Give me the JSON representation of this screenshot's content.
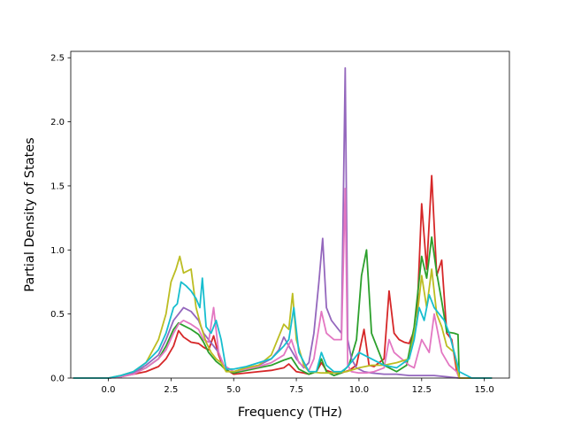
{
  "chart_data": {
    "type": "line",
    "title": "",
    "xlabel": "Frequency (THz)",
    "ylabel": "Partial Density of States",
    "xlim": [
      -1.5,
      16.0
    ],
    "ylim": [
      0.0,
      2.55
    ],
    "xticks": [
      0.0,
      2.5,
      5.0,
      7.5,
      10.0,
      12.5,
      15.0
    ],
    "xtick_labels": [
      "0.0",
      "2.5",
      "5.0",
      "7.5",
      "10.0",
      "12.5",
      "15.0"
    ],
    "yticks": [
      0.0,
      0.5,
      1.0,
      1.5,
      2.0,
      2.5
    ],
    "ytick_labels": [
      "0.0",
      "0.5",
      "1.0",
      "1.5",
      "2.0",
      "2.5"
    ],
    "grid": false,
    "legend": "none",
    "series": [
      {
        "color": "#d62728",
        "x": [
          -1.4,
          0.0,
          0.5,
          1.0,
          1.5,
          2.0,
          2.3,
          2.6,
          2.8,
          3.0,
          3.3,
          3.6,
          3.8,
          4.0,
          4.2,
          4.4,
          4.6,
          5.0,
          5.5,
          6.0,
          6.5,
          7.0,
          7.2,
          7.5,
          7.8,
          8.0,
          8.3,
          8.5,
          8.7,
          9.0,
          9.3,
          9.6,
          9.9,
          10.2,
          10.4,
          10.6,
          10.8,
          11.0,
          11.2,
          11.4,
          11.6,
          11.8,
          12.0,
          12.3,
          12.5,
          12.7,
          12.9,
          13.1,
          13.3,
          13.5,
          13.7,
          13.9,
          14.0,
          14.5,
          15.3
        ],
        "y": [
          0.0,
          0.0,
          0.01,
          0.03,
          0.05,
          0.09,
          0.15,
          0.25,
          0.37,
          0.32,
          0.28,
          0.27,
          0.24,
          0.22,
          0.33,
          0.18,
          0.08,
          0.03,
          0.04,
          0.05,
          0.06,
          0.08,
          0.11,
          0.05,
          0.04,
          0.03,
          0.05,
          0.12,
          0.06,
          0.04,
          0.04,
          0.06,
          0.1,
          0.38,
          0.1,
          0.09,
          0.12,
          0.15,
          0.68,
          0.35,
          0.3,
          0.28,
          0.27,
          0.42,
          1.36,
          0.85,
          1.58,
          0.8,
          0.92,
          0.35,
          0.3,
          0.05,
          0.0,
          0.0,
          0.0
        ]
      },
      {
        "color": "#2ca02c",
        "x": [
          -1.4,
          0.0,
          0.5,
          1.0,
          1.5,
          2.0,
          2.3,
          2.6,
          2.8,
          3.0,
          3.3,
          3.6,
          3.8,
          4.0,
          4.3,
          4.5,
          4.7,
          5.0,
          5.5,
          6.0,
          6.5,
          7.0,
          7.3,
          7.6,
          8.0,
          8.3,
          8.5,
          8.7,
          9.0,
          9.3,
          9.6,
          9.9,
          10.1,
          10.3,
          10.5,
          10.8,
          11.0,
          11.5,
          11.9,
          12.2,
          12.5,
          12.7,
          12.9,
          13.1,
          13.3,
          13.5,
          13.8,
          13.95,
          14.0,
          14.5,
          15.3
        ],
        "y": [
          0.0,
          0.0,
          0.01,
          0.04,
          0.08,
          0.15,
          0.25,
          0.38,
          0.43,
          0.41,
          0.38,
          0.34,
          0.28,
          0.2,
          0.13,
          0.1,
          0.06,
          0.04,
          0.06,
          0.08,
          0.1,
          0.14,
          0.16,
          0.07,
          0.03,
          0.05,
          0.15,
          0.05,
          0.02,
          0.04,
          0.1,
          0.3,
          0.8,
          1.0,
          0.35,
          0.2,
          0.1,
          0.05,
          0.1,
          0.4,
          0.95,
          0.78,
          1.1,
          0.82,
          0.6,
          0.36,
          0.35,
          0.34,
          0.0,
          0.0,
          0.0
        ]
      },
      {
        "color": "#9467bd",
        "x": [
          -1.4,
          0.0,
          0.5,
          1.0,
          1.5,
          2.0,
          2.3,
          2.6,
          2.8,
          3.0,
          3.3,
          3.6,
          3.8,
          4.0,
          4.2,
          4.4,
          4.6,
          5.0,
          5.5,
          6.0,
          6.5,
          6.8,
          7.0,
          7.2,
          7.5,
          7.8,
          8.0,
          8.2,
          8.4,
          8.55,
          8.7,
          8.9,
          9.1,
          9.3,
          9.45,
          9.55,
          9.7,
          9.9,
          10.2,
          10.5,
          11.0,
          11.5,
          12.0,
          12.5,
          13.0,
          13.5,
          14.0,
          14.5,
          15.3
        ],
        "y": [
          0.0,
          0.0,
          0.01,
          0.04,
          0.1,
          0.18,
          0.3,
          0.45,
          0.5,
          0.55,
          0.52,
          0.45,
          0.35,
          0.3,
          0.25,
          0.2,
          0.1,
          0.05,
          0.08,
          0.1,
          0.15,
          0.22,
          0.32,
          0.25,
          0.15,
          0.08,
          0.12,
          0.35,
          0.75,
          1.09,
          0.55,
          0.45,
          0.4,
          0.35,
          2.42,
          0.3,
          0.15,
          0.08,
          0.05,
          0.04,
          0.03,
          0.03,
          0.02,
          0.02,
          0.02,
          0.01,
          0.0,
          0.0,
          0.0
        ]
      },
      {
        "color": "#e377c2",
        "x": [
          -1.4,
          0.0,
          0.5,
          1.0,
          1.5,
          2.0,
          2.3,
          2.6,
          2.8,
          3.0,
          3.3,
          3.6,
          3.8,
          4.0,
          4.2,
          4.4,
          4.6,
          5.0,
          5.5,
          6.0,
          6.5,
          7.0,
          7.3,
          7.6,
          8.0,
          8.2,
          8.5,
          8.7,
          9.0,
          9.3,
          9.45,
          9.55,
          9.7,
          10.0,
          10.3,
          10.6,
          11.0,
          11.2,
          11.4,
          11.7,
          12.0,
          12.2,
          12.5,
          12.8,
          13.0,
          13.3,
          13.6,
          13.9,
          14.0,
          14.5,
          15.3
        ],
        "y": [
          0.0,
          0.0,
          0.01,
          0.03,
          0.08,
          0.15,
          0.22,
          0.35,
          0.42,
          0.45,
          0.42,
          0.38,
          0.3,
          0.28,
          0.55,
          0.2,
          0.1,
          0.05,
          0.07,
          0.09,
          0.12,
          0.18,
          0.3,
          0.12,
          0.06,
          0.15,
          0.52,
          0.35,
          0.3,
          0.3,
          1.48,
          0.1,
          0.05,
          0.04,
          0.04,
          0.05,
          0.08,
          0.3,
          0.2,
          0.15,
          0.1,
          0.08,
          0.3,
          0.2,
          0.5,
          0.2,
          0.1,
          0.05,
          0.0,
          0.0,
          0.0
        ]
      },
      {
        "color": "#bcbd22",
        "x": [
          -1.4,
          0.0,
          0.5,
          1.0,
          1.5,
          2.0,
          2.3,
          2.5,
          2.7,
          2.85,
          3.0,
          3.3,
          3.5,
          3.7,
          3.9,
          4.1,
          4.3,
          4.5,
          4.7,
          5.0,
          5.5,
          6.0,
          6.5,
          7.0,
          7.2,
          7.35,
          7.5,
          7.8,
          8.0,
          8.5,
          9.0,
          9.5,
          10.0,
          10.5,
          11.0,
          11.5,
          12.0,
          12.3,
          12.5,
          12.7,
          12.9,
          13.1,
          13.3,
          13.5,
          13.8,
          14.0,
          14.5,
          15.3
        ],
        "y": [
          0.0,
          0.0,
          0.02,
          0.05,
          0.12,
          0.3,
          0.5,
          0.75,
          0.85,
          0.95,
          0.82,
          0.85,
          0.55,
          0.4,
          0.28,
          0.2,
          0.15,
          0.12,
          0.05,
          0.05,
          0.08,
          0.1,
          0.18,
          0.42,
          0.38,
          0.66,
          0.3,
          0.1,
          0.05,
          0.04,
          0.04,
          0.05,
          0.08,
          0.1,
          0.1,
          0.12,
          0.15,
          0.45,
          0.8,
          0.55,
          0.85,
          0.5,
          0.4,
          0.25,
          0.2,
          0.0,
          0.0,
          0.0
        ]
      },
      {
        "color": "#17becf",
        "x": [
          -1.4,
          0.0,
          0.5,
          1.0,
          1.5,
          2.0,
          2.3,
          2.6,
          2.75,
          2.9,
          3.1,
          3.3,
          3.5,
          3.65,
          3.75,
          3.9,
          4.1,
          4.3,
          4.5,
          4.7,
          5.0,
          5.5,
          6.0,
          6.5,
          7.0,
          7.2,
          7.4,
          7.6,
          8.0,
          8.3,
          8.5,
          8.7,
          9.0,
          9.3,
          9.5,
          9.8,
          10.0,
          10.5,
          11.0,
          11.5,
          12.0,
          12.2,
          12.4,
          12.6,
          12.8,
          13.0,
          13.2,
          13.4,
          13.6,
          13.8,
          14.0,
          14.5,
          15.3
        ],
        "y": [
          0.0,
          0.0,
          0.02,
          0.05,
          0.12,
          0.22,
          0.35,
          0.55,
          0.58,
          0.75,
          0.72,
          0.68,
          0.62,
          0.55,
          0.78,
          0.4,
          0.35,
          0.45,
          0.3,
          0.07,
          0.07,
          0.09,
          0.12,
          0.15,
          0.25,
          0.3,
          0.55,
          0.2,
          0.05,
          0.05,
          0.2,
          0.1,
          0.05,
          0.05,
          0.08,
          0.15,
          0.2,
          0.15,
          0.1,
          0.08,
          0.15,
          0.3,
          0.55,
          0.45,
          0.65,
          0.55,
          0.5,
          0.45,
          0.35,
          0.2,
          0.05,
          0.0,
          0.0
        ]
      }
    ]
  }
}
